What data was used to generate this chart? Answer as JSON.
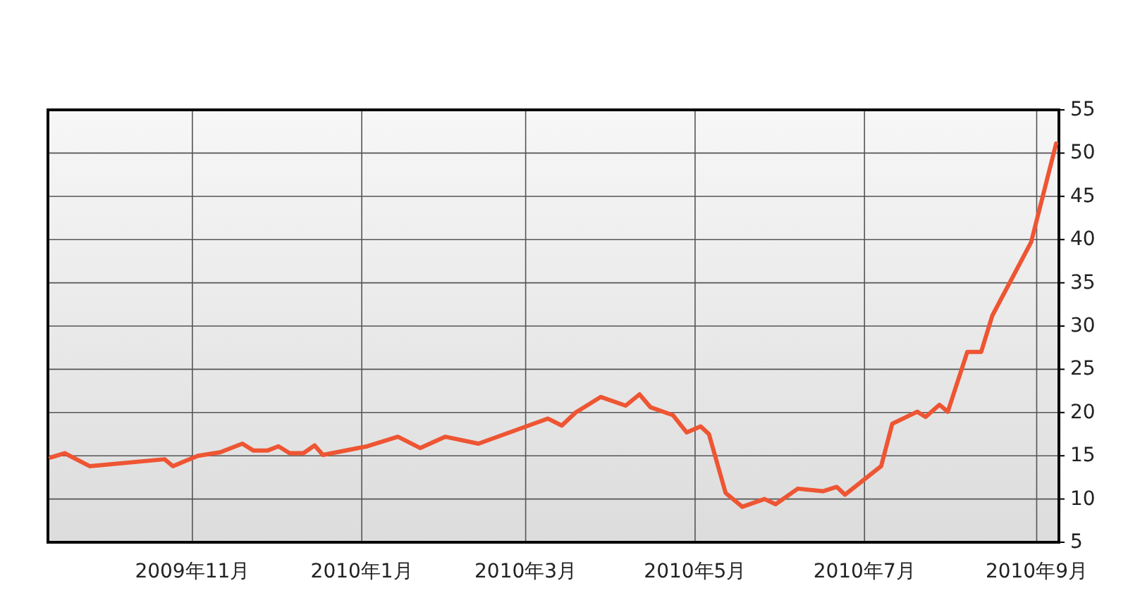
{
  "chart_data": {
    "type": "line",
    "x": [
      "2009-09-11",
      "2009-09-16",
      "2009-09-25",
      "2009-10-22",
      "2009-10-25",
      "2009-11-03",
      "2009-11-11",
      "2009-11-19",
      "2009-11-23",
      "2009-11-28",
      "2009-12-02",
      "2009-12-06",
      "2009-12-11",
      "2009-12-15",
      "2009-12-18",
      "2010-01-03",
      "2010-01-14",
      "2010-01-22",
      "2010-01-31",
      "2010-02-12",
      "2010-03-09",
      "2010-03-14",
      "2010-03-19",
      "2010-03-28",
      "2010-04-06",
      "2010-04-11",
      "2010-04-15",
      "2010-04-23",
      "2010-04-28",
      "2010-05-03",
      "2010-05-06",
      "2010-05-12",
      "2010-05-18",
      "2010-05-26",
      "2010-05-30",
      "2010-06-07",
      "2010-06-16",
      "2010-06-21",
      "2010-06-24",
      "2010-07-07",
      "2010-07-11",
      "2010-07-20",
      "2010-07-23",
      "2010-07-28",
      "2010-07-31",
      "2010-08-07",
      "2010-08-12",
      "2010-08-16",
      "2010-08-30",
      "2010-09-08"
    ],
    "series": [
      {
        "color": "#ee5533",
        "values": [
          14.8,
          15.3,
          13.8,
          14.6,
          13.8,
          15.0,
          15.4,
          16.4,
          15.6,
          15.6,
          16.1,
          15.3,
          15.3,
          16.2,
          15.1,
          16.1,
          17.2,
          15.9,
          17.2,
          16.4,
          19.3,
          18.5,
          20.0,
          21.8,
          20.8,
          22.1,
          20.6,
          19.7,
          17.7,
          18.4,
          17.5,
          10.7,
          9.1,
          10.0,
          9.4,
          11.2,
          10.9,
          11.4,
          10.5,
          13.8,
          18.7,
          20.1,
          19.5,
          20.9,
          20.1,
          27.0,
          27.0,
          31.2,
          39.7,
          51.1
        ]
      }
    ],
    "xlim": [
      "2009-09-10",
      "2010-09-09"
    ],
    "xticks": [
      {
        "value": "2009-11-01",
        "label": "2009年11月"
      },
      {
        "value": "2010-01-01",
        "label": "2010年1月"
      },
      {
        "value": "2010-03-01",
        "label": "2010年3月"
      },
      {
        "value": "2010-05-01",
        "label": "2010年5月"
      },
      {
        "value": "2010-07-01",
        "label": "2010年7月"
      },
      {
        "value": "2010-09-01",
        "label": "2010年9月"
      }
    ],
    "ylim": [
      5,
      55
    ],
    "yticks": [
      5,
      10,
      15,
      20,
      25,
      30,
      35,
      40,
      45,
      50,
      55
    ],
    "grid": true,
    "line_style": "solid"
  }
}
